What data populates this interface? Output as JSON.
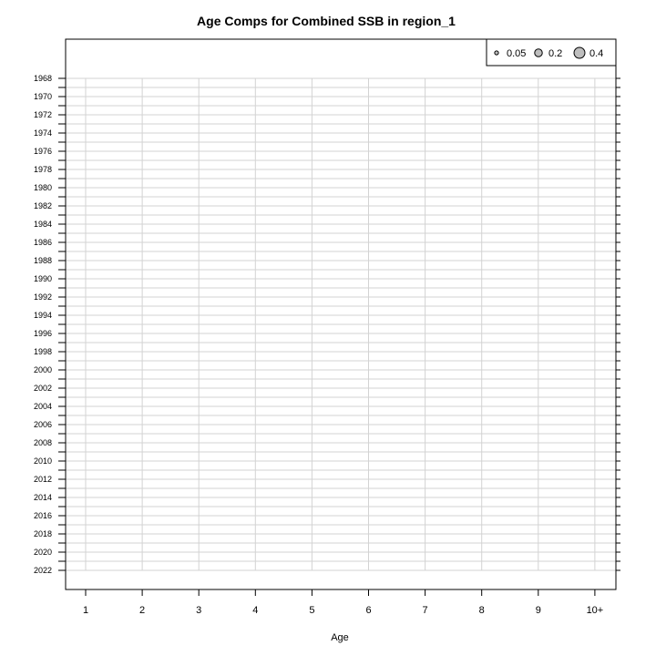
{
  "chart_data": {
    "type": "scatter",
    "title": "Age Comps for Combined SSB in region_1",
    "xlabel": "Age",
    "ylabel": "",
    "x_categories": [
      "1",
      "2",
      "3",
      "4",
      "5",
      "6",
      "7",
      "8",
      "9",
      "10+"
    ],
    "years": [
      1968,
      1969,
      1970,
      1971,
      1972,
      1973,
      1974,
      1975,
      1976,
      1977,
      1978,
      1979,
      1980,
      1981,
      1982,
      1983,
      1984,
      1985,
      1986,
      1987,
      1988,
      1989,
      1990,
      1991,
      1992,
      1993,
      1994,
      1995,
      1996,
      1997,
      1998,
      1999,
      2000,
      2001,
      2002,
      2003,
      2004,
      2005,
      2006,
      2007,
      2008,
      2009,
      2010,
      2011,
      2012,
      2013,
      2014,
      2015,
      2016,
      2017,
      2018,
      2019,
      2020,
      2021,
      2022
    ],
    "ytick_labels": [
      "1968",
      "1970",
      "1972",
      "1974",
      "1976",
      "1978",
      "1980",
      "1982",
      "1984",
      "1986",
      "1988",
      "1990",
      "1992",
      "1994",
      "1996",
      "1998",
      "2000",
      "2002",
      "2004",
      "2006",
      "2008",
      "2010",
      "2012",
      "2014",
      "2016",
      "2018",
      "2020",
      "2022"
    ],
    "points": [],
    "grid": true,
    "grid_color": "#d3d3d3",
    "legend": {
      "placement": "top-right",
      "entries": [
        {
          "label": "0.05",
          "value": 0.05
        },
        {
          "label": "0.2",
          "value": 0.2
        },
        {
          "label": "0.4",
          "value": 0.4
        }
      ],
      "fill": "#bebebe"
    }
  }
}
